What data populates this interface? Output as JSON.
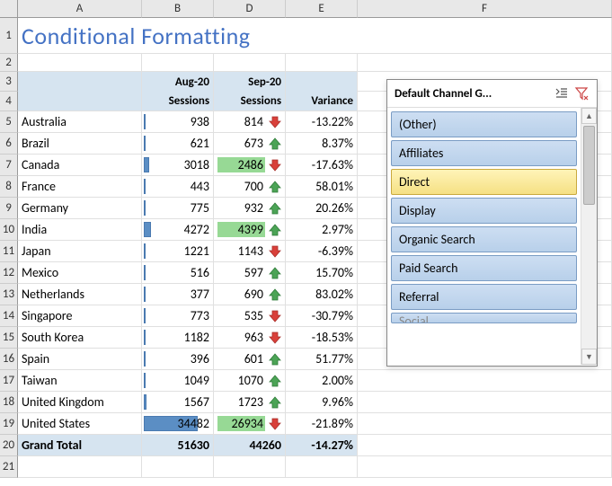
{
  "columns": [
    "A",
    "B",
    "D",
    "E",
    "F"
  ],
  "title": "Conditional Formatting",
  "headers": {
    "month1": "Aug-20",
    "month2": "Sep-20",
    "sessions": "Sessions",
    "variance": "Variance"
  },
  "rows": [
    {
      "n": "5",
      "country": "Australia",
      "aug": "938",
      "sep": "814",
      "var": "-13.22%",
      "dir": "down",
      "bar": 2
    },
    {
      "n": "6",
      "country": "Brazil",
      "aug": "621",
      "sep": "673",
      "var": "8.37%",
      "dir": "up",
      "bar": 2
    },
    {
      "n": "7",
      "country": "Canada",
      "aug": "3018",
      "sep": "2486",
      "var": "-17.63%",
      "dir": "down",
      "bar": 7,
      "hl": true
    },
    {
      "n": "8",
      "country": "France",
      "aug": "443",
      "sep": "700",
      "var": "58.01%",
      "dir": "up",
      "bar": 2
    },
    {
      "n": "9",
      "country": "Germany",
      "aug": "775",
      "sep": "932",
      "var": "20.26%",
      "dir": "up",
      "bar": 2
    },
    {
      "n": "10",
      "country": "India",
      "aug": "4272",
      "sep": "4399",
      "var": "2.97%",
      "dir": "up",
      "bar": 10,
      "hl": true
    },
    {
      "n": "11",
      "country": "Japan",
      "aug": "1221",
      "sep": "1143",
      "var": "-6.39%",
      "dir": "down",
      "bar": 3
    },
    {
      "n": "12",
      "country": "Mexico",
      "aug": "516",
      "sep": "597",
      "var": "15.70%",
      "dir": "up",
      "bar": 2
    },
    {
      "n": "13",
      "country": "Netherlands",
      "aug": "377",
      "sep": "690",
      "var": "83.02%",
      "dir": "up",
      "bar": 2
    },
    {
      "n": "14",
      "country": "Singapore",
      "aug": "773",
      "sep": "535",
      "var": "-30.79%",
      "dir": "down",
      "bar": 2
    },
    {
      "n": "15",
      "country": "South Korea",
      "aug": "1182",
      "sep": "963",
      "var": "-18.53%",
      "dir": "down",
      "bar": 3
    },
    {
      "n": "16",
      "country": "Spain",
      "aug": "396",
      "sep": "601",
      "var": "51.77%",
      "dir": "up",
      "bar": 2
    },
    {
      "n": "17",
      "country": "Taiwan",
      "aug": "1049",
      "sep": "1070",
      "var": "2.00%",
      "dir": "up",
      "bar": 3
    },
    {
      "n": "18",
      "country": "United Kingdom",
      "aug": "1567",
      "sep": "1723",
      "var": "9.96%",
      "dir": "up",
      "bar": 4
    },
    {
      "n": "19",
      "country": "United States",
      "aug": "34482",
      "sep": "26934",
      "var": "-21.89%",
      "dir": "down",
      "bar": 76,
      "hl": true
    }
  ],
  "grand": {
    "n": "20",
    "label": "Grand Total",
    "aug": "51630",
    "sep": "44260",
    "var": "-14.27%"
  },
  "slicer": {
    "title": "Default Channel G...",
    "items": [
      {
        "label": "(Other)",
        "selected": false
      },
      {
        "label": "Affiliates",
        "selected": false
      },
      {
        "label": "Direct",
        "selected": true
      },
      {
        "label": "Display",
        "selected": false
      },
      {
        "label": "Organic Search",
        "selected": false
      },
      {
        "label": "Paid Search",
        "selected": false
      },
      {
        "label": "Referral",
        "selected": false
      }
    ],
    "partial": "Social"
  },
  "empty_row": "21"
}
